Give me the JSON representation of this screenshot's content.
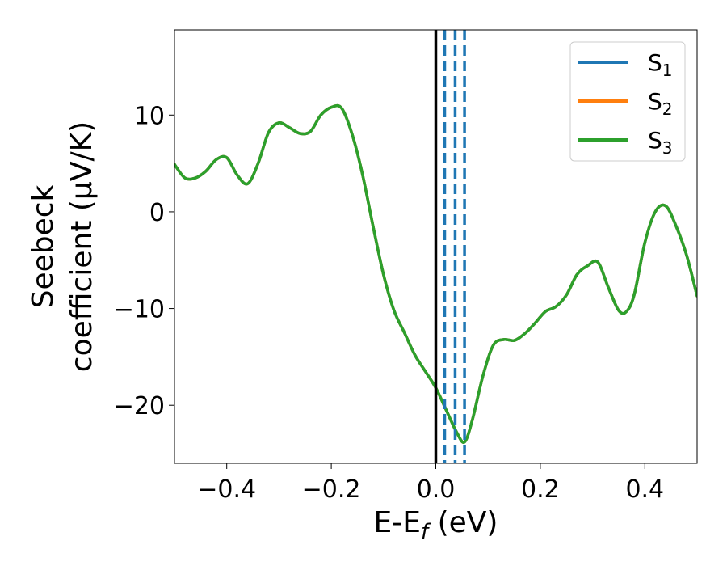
{
  "chart_data": {
    "type": "line",
    "xlabel": "E-E_f (eV)",
    "xlabel_parts": {
      "main": "E-E",
      "sub": "f",
      "tail": " (eV)"
    },
    "ylabel_lines": [
      "Seebeck",
      "coefficient  (μV/K)"
    ],
    "xlim": [
      -0.5,
      0.5
    ],
    "ylim": [
      -26,
      18.8
    ],
    "xticks": [
      -0.4,
      -0.2,
      0.0,
      0.2,
      0.4
    ],
    "xtick_labels": [
      "−0.4",
      "−0.2",
      "0.0",
      "0.2",
      "0.4"
    ],
    "yticks": [
      -20,
      -10,
      0,
      10
    ],
    "ytick_labels": [
      "−20",
      "−10",
      "0",
      "10"
    ],
    "grid": false,
    "legend_position": "top-right",
    "fermi_level": 0.0,
    "fermi_color": "#000000",
    "dashed_vlines": {
      "x": [
        0.017,
        0.037,
        0.055
      ],
      "color": "#1f77b4"
    },
    "series": [
      {
        "name": "S1",
        "label_main": "S",
        "label_sub": "1",
        "color": "#1f77b4"
      },
      {
        "name": "S2",
        "label_main": "S",
        "label_sub": "2",
        "color": "#ff7f0e"
      },
      {
        "name": "S3",
        "label_main": "S",
        "label_sub": "3",
        "color": "#2ca02c"
      }
    ],
    "curve_note": "S1, S2 and S3 coincide; only S3 (green) is visible on top",
    "x": [
      -0.5,
      -0.48,
      -0.46,
      -0.44,
      -0.42,
      -0.4,
      -0.38,
      -0.36,
      -0.34,
      -0.32,
      -0.3,
      -0.28,
      -0.26,
      -0.24,
      -0.22,
      -0.2,
      -0.18,
      -0.16,
      -0.14,
      -0.12,
      -0.1,
      -0.08,
      -0.06,
      -0.04,
      -0.02,
      0.0,
      0.02,
      0.04,
      0.055,
      0.07,
      0.09,
      0.11,
      0.13,
      0.15,
      0.17,
      0.19,
      0.21,
      0.23,
      0.25,
      0.27,
      0.29,
      0.31,
      0.33,
      0.35,
      0.365,
      0.38,
      0.4,
      0.42,
      0.44,
      0.46,
      0.48,
      0.5
    ],
    "values": [
      4.9,
      3.5,
      3.5,
      4.2,
      5.4,
      5.6,
      3.8,
      2.9,
      5.0,
      8.2,
      9.2,
      8.7,
      8.1,
      8.3,
      10.0,
      10.8,
      10.7,
      8.0,
      3.8,
      -1.5,
      -6.5,
      -10.2,
      -12.5,
      -14.8,
      -16.5,
      -18.2,
      -20.5,
      -22.8,
      -23.8,
      -21.5,
      -17.0,
      -13.8,
      -13.2,
      -13.3,
      -12.6,
      -11.5,
      -10.3,
      -9.8,
      -8.6,
      -6.5,
      -5.6,
      -5.2,
      -7.8,
      -10.2,
      -10.3,
      -8.5,
      -3.2,
      0.0,
      0.6,
      -1.5,
      -4.5,
      -8.7
    ]
  }
}
